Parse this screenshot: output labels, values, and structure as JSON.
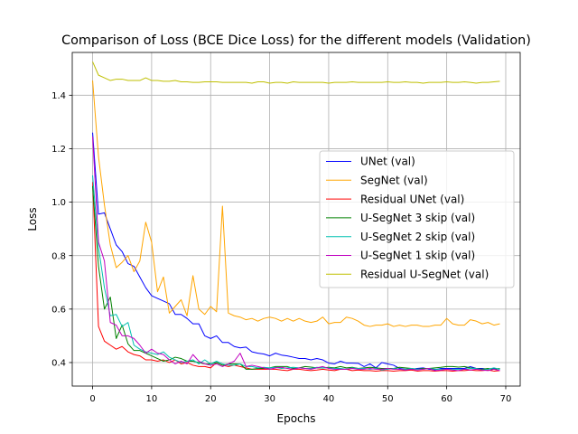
{
  "chart_data": {
    "type": "line",
    "title": "Comparison of Loss (BCE Dice Loss) for the different models (Validation)",
    "xlabel": "Epochs",
    "ylabel": "Loss",
    "xlim": [
      -3.45,
      72.45
    ],
    "ylim": [
      0.312,
      1.56
    ],
    "xticks": [
      0,
      10,
      20,
      30,
      40,
      50,
      60,
      70
    ],
    "yticks": [
      0.4,
      0.6,
      0.8,
      1.0,
      1.2,
      1.4
    ],
    "xtick_labels": [
      "0",
      "10",
      "20",
      "30",
      "40",
      "50",
      "60",
      "70"
    ],
    "ytick_labels": [
      "0.4",
      "0.6",
      "0.8",
      "1.0",
      "1.2",
      "1.4"
    ],
    "grid": true,
    "legend_position": "center-right",
    "series": [
      {
        "name": "UNet (val)",
        "color": "#0000ff",
        "values": [
          1.26,
          0.955,
          0.96,
          0.9,
          0.84,
          0.815,
          0.77,
          0.76,
          0.72,
          0.68,
          0.65,
          0.64,
          0.63,
          0.62,
          0.58,
          0.58,
          0.565,
          0.545,
          0.545,
          0.5,
          0.49,
          0.5,
          0.475,
          0.475,
          0.46,
          0.455,
          0.458,
          0.44,
          0.435,
          0.432,
          0.425,
          0.435,
          0.428,
          0.425,
          0.42,
          0.415,
          0.415,
          0.41,
          0.415,
          0.41,
          0.398,
          0.395,
          0.405,
          0.398,
          0.398,
          0.397,
          0.385,
          0.395,
          0.38,
          0.4,
          0.395,
          0.39,
          0.378,
          0.375,
          0.375,
          0.378,
          0.38,
          0.375,
          0.373,
          0.378,
          0.378,
          0.378,
          0.378,
          0.378,
          0.385,
          0.378,
          0.378,
          0.375,
          0.378,
          0.375
        ]
      },
      {
        "name": "SegNet (val)",
        "color": "#ffa500",
        "values": [
          1.455,
          1.17,
          0.99,
          0.84,
          0.755,
          0.775,
          0.8,
          0.74,
          0.78,
          0.925,
          0.85,
          0.665,
          0.72,
          0.585,
          0.61,
          0.635,
          0.575,
          0.725,
          0.6,
          0.58,
          0.61,
          0.59,
          0.985,
          0.585,
          0.575,
          0.57,
          0.56,
          0.565,
          0.555,
          0.565,
          0.57,
          0.565,
          0.555,
          0.565,
          0.555,
          0.565,
          0.555,
          0.55,
          0.555,
          0.57,
          0.545,
          0.55,
          0.55,
          0.57,
          0.565,
          0.555,
          0.54,
          0.535,
          0.54,
          0.54,
          0.545,
          0.535,
          0.54,
          0.535,
          0.54,
          0.54,
          0.535,
          0.535,
          0.54,
          0.54,
          0.565,
          0.545,
          0.54,
          0.54,
          0.56,
          0.555,
          0.545,
          0.55,
          0.54,
          0.545
        ]
      },
      {
        "name": "Residual UNet (val)",
        "color": "#ff0000",
        "values": [
          1.075,
          0.535,
          0.48,
          0.465,
          0.45,
          0.46,
          0.44,
          0.43,
          0.425,
          0.41,
          0.41,
          0.405,
          0.41,
          0.4,
          0.41,
          0.395,
          0.4,
          0.39,
          0.385,
          0.385,
          0.38,
          0.4,
          0.39,
          0.385,
          0.39,
          0.385,
          0.38,
          0.375,
          0.375,
          0.375,
          0.375,
          0.375,
          0.372,
          0.37,
          0.375,
          0.375,
          0.372,
          0.37,
          0.372,
          0.375,
          0.372,
          0.37,
          0.375,
          0.375,
          0.37,
          0.372,
          0.37,
          0.37,
          0.368,
          0.37,
          0.37,
          0.368,
          0.37,
          0.37,
          0.372,
          0.368,
          0.37,
          0.37,
          0.368,
          0.37,
          0.37,
          0.368,
          0.37,
          0.37,
          0.372,
          0.37,
          0.37,
          0.372,
          0.368,
          0.37
        ]
      },
      {
        "name": "U-SegNet 3 skip (val)",
        "color": "#008000",
        "values": [
          1.06,
          0.76,
          0.6,
          0.645,
          0.49,
          0.54,
          0.47,
          0.445,
          0.445,
          0.435,
          0.425,
          0.415,
          0.405,
          0.41,
          0.42,
          0.415,
          0.405,
          0.405,
          0.4,
          0.395,
          0.395,
          0.4,
          0.39,
          0.395,
          0.395,
          0.395,
          0.375,
          0.375,
          0.378,
          0.378,
          0.38,
          0.385,
          0.385,
          0.385,
          0.378,
          0.38,
          0.385,
          0.383,
          0.38,
          0.38,
          0.382,
          0.38,
          0.385,
          0.38,
          0.382,
          0.378,
          0.38,
          0.382,
          0.38,
          0.378,
          0.378,
          0.378,
          0.382,
          0.38,
          0.378,
          0.375,
          0.378,
          0.378,
          0.38,
          0.382,
          0.385,
          0.385,
          0.383,
          0.385,
          0.38,
          0.378,
          0.375,
          0.378,
          0.375,
          0.378
        ]
      },
      {
        "name": "U-SegNet 2 skip (val)",
        "color": "#00c0b0",
        "values": [
          1.1,
          0.83,
          0.68,
          0.575,
          0.58,
          0.535,
          0.55,
          0.465,
          0.45,
          0.44,
          0.435,
          0.43,
          0.44,
          0.42,
          0.41,
          0.4,
          0.405,
          0.41,
          0.395,
          0.41,
          0.395,
          0.405,
          0.395,
          0.39,
          0.39,
          0.395,
          0.385,
          0.385,
          0.38,
          0.382,
          0.38,
          0.382,
          0.378,
          0.38,
          0.382,
          0.38,
          0.378,
          0.378,
          0.382,
          0.38,
          0.38,
          0.378,
          0.378,
          0.375,
          0.38,
          0.378,
          0.378,
          0.375,
          0.378,
          0.372,
          0.375,
          0.378,
          0.375,
          0.375,
          0.378,
          0.375,
          0.375,
          0.378,
          0.375,
          0.375,
          0.375,
          0.375,
          0.375,
          0.375,
          0.378,
          0.378,
          0.372,
          0.375,
          0.38,
          0.375
        ]
      },
      {
        "name": "U-SegNet 1 skip (val)",
        "color": "#c000c0",
        "values": [
          1.245,
          0.85,
          0.78,
          0.55,
          0.54,
          0.5,
          0.5,
          0.49,
          0.465,
          0.435,
          0.45,
          0.435,
          0.43,
          0.41,
          0.395,
          0.405,
          0.395,
          0.43,
          0.405,
          0.395,
          0.39,
          0.395,
          0.385,
          0.395,
          0.405,
          0.435,
          0.385,
          0.39,
          0.385,
          0.38,
          0.375,
          0.38,
          0.382,
          0.378,
          0.375,
          0.38,
          0.378,
          0.375,
          0.38,
          0.385,
          0.378,
          0.375,
          0.375,
          0.375,
          0.378,
          0.375,
          0.375,
          0.378,
          0.375,
          0.375,
          0.378,
          0.375,
          0.375,
          0.372,
          0.375,
          0.372,
          0.375,
          0.378,
          0.37,
          0.372,
          0.375,
          0.372,
          0.37,
          0.375,
          0.372,
          0.375,
          0.372,
          0.37,
          0.375,
          0.37
        ]
      },
      {
        "name": "Residual U-SegNet (val)",
        "color": "#bfbf00",
        "values": [
          1.525,
          1.475,
          1.465,
          1.455,
          1.46,
          1.46,
          1.455,
          1.455,
          1.455,
          1.465,
          1.455,
          1.455,
          1.452,
          1.452,
          1.455,
          1.45,
          1.45,
          1.448,
          1.448,
          1.45,
          1.45,
          1.45,
          1.448,
          1.448,
          1.448,
          1.448,
          1.448,
          1.445,
          1.45,
          1.45,
          1.445,
          1.448,
          1.448,
          1.445,
          1.45,
          1.448,
          1.448,
          1.448,
          1.448,
          1.448,
          1.445,
          1.448,
          1.448,
          1.448,
          1.45,
          1.448,
          1.448,
          1.448,
          1.448,
          1.448,
          1.45,
          1.448,
          1.448,
          1.45,
          1.448,
          1.448,
          1.445,
          1.448,
          1.448,
          1.448,
          1.45,
          1.448,
          1.448,
          1.45,
          1.448,
          1.445,
          1.448,
          1.448,
          1.45,
          1.452
        ]
      }
    ]
  }
}
